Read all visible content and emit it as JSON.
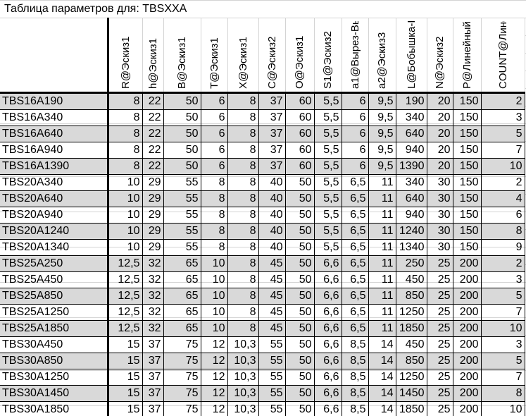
{
  "title": "Таблица параметров для: TBSXXA",
  "columns": [
    "R@Эскиз1",
    "h@Эскиз1",
    "B@Эскиз1",
    "T@Эскиз1",
    "X@Эскиз1",
    "C@Эскиз2",
    "O@Эскиз1",
    "S1@Эскиз2",
    "a1@Вырез-Вы",
    "a2@Эскиз3",
    "L@Бобышка-В",
    "N@Эскиз2",
    "P@Линейный",
    "COUNT@Лине"
  ],
  "rows": [
    {
      "name": "TBS16A190",
      "values": [
        "8",
        "22",
        "50",
        "6",
        "8",
        "37",
        "60",
        "5,5",
        "6",
        "9,5",
        "190",
        "20",
        "150",
        "2"
      ]
    },
    {
      "name": "TBS16A340",
      "values": [
        "8",
        "22",
        "50",
        "6",
        "8",
        "37",
        "60",
        "5,5",
        "6",
        "9,5",
        "340",
        "20",
        "150",
        "3"
      ]
    },
    {
      "name": "TBS16A640",
      "values": [
        "8",
        "22",
        "50",
        "6",
        "8",
        "37",
        "60",
        "5,5",
        "6",
        "9,5",
        "640",
        "20",
        "150",
        "5"
      ]
    },
    {
      "name": "TBS16A940",
      "values": [
        "8",
        "22",
        "50",
        "6",
        "8",
        "37",
        "60",
        "5,5",
        "6",
        "9,5",
        "940",
        "20",
        "150",
        "7"
      ]
    },
    {
      "name": "TBS16A1390",
      "values": [
        "8",
        "22",
        "50",
        "6",
        "8",
        "37",
        "60",
        "5,5",
        "6",
        "9,5",
        "1390",
        "20",
        "150",
        "10"
      ]
    },
    {
      "name": "TBS20A340",
      "values": [
        "10",
        "29",
        "55",
        "8",
        "8",
        "40",
        "50",
        "5,5",
        "6,5",
        "11",
        "340",
        "30",
        "150",
        "2"
      ]
    },
    {
      "name": "TBS20A640",
      "values": [
        "10",
        "29",
        "55",
        "8",
        "8",
        "40",
        "50",
        "5,5",
        "6,5",
        "11",
        "640",
        "30",
        "150",
        "4"
      ]
    },
    {
      "name": "TBS20A940",
      "values": [
        "10",
        "29",
        "55",
        "8",
        "8",
        "40",
        "50",
        "5,5",
        "6,5",
        "11",
        "940",
        "30",
        "150",
        "6"
      ]
    },
    {
      "name": "TBS20A1240",
      "values": [
        "10",
        "29",
        "55",
        "8",
        "8",
        "40",
        "50",
        "5,5",
        "6,5",
        "11",
        "1240",
        "30",
        "150",
        "8"
      ]
    },
    {
      "name": "TBS20A1340",
      "values": [
        "10",
        "29",
        "55",
        "8",
        "8",
        "40",
        "50",
        "5,5",
        "6,5",
        "11",
        "1340",
        "30",
        "150",
        "9"
      ]
    },
    {
      "name": "TBS25A250",
      "values": [
        "12,5",
        "32",
        "65",
        "10",
        "8",
        "45",
        "50",
        "6,6",
        "6,5",
        "11",
        "250",
        "25",
        "200",
        "2"
      ]
    },
    {
      "name": "TBS25A450",
      "values": [
        "12,5",
        "32",
        "65",
        "10",
        "8",
        "45",
        "50",
        "6,6",
        "6,5",
        "11",
        "450",
        "25",
        "200",
        "3"
      ]
    },
    {
      "name": "TBS25A850",
      "values": [
        "12,5",
        "32",
        "65",
        "10",
        "8",
        "45",
        "50",
        "6,6",
        "6,5",
        "11",
        "850",
        "25",
        "200",
        "5"
      ]
    },
    {
      "name": "TBS25A1250",
      "values": [
        "12,5",
        "32",
        "65",
        "10",
        "8",
        "45",
        "50",
        "6,6",
        "6,5",
        "11",
        "1250",
        "25",
        "200",
        "7"
      ]
    },
    {
      "name": "TBS25A1850",
      "values": [
        "12,5",
        "32",
        "65",
        "10",
        "8",
        "45",
        "50",
        "6,6",
        "6,5",
        "11",
        "1850",
        "25",
        "200",
        "10"
      ]
    },
    {
      "name": "TBS30A450",
      "values": [
        "15",
        "37",
        "75",
        "12",
        "10,3",
        "55",
        "50",
        "6,6",
        "8,5",
        "14",
        "450",
        "25",
        "200",
        "3"
      ]
    },
    {
      "name": "TBS30A850",
      "values": [
        "15",
        "37",
        "75",
        "12",
        "10,3",
        "55",
        "50",
        "6,6",
        "8,5",
        "14",
        "850",
        "25",
        "200",
        "5"
      ]
    },
    {
      "name": "TBS30A1250",
      "values": [
        "15",
        "37",
        "75",
        "12",
        "10,3",
        "55",
        "50",
        "6,6",
        "8,5",
        "14",
        "1250",
        "25",
        "200",
        "7"
      ]
    },
    {
      "name": "TBS30A1450",
      "values": [
        "15",
        "37",
        "75",
        "12",
        "10,3",
        "55",
        "50",
        "6,6",
        "8,5",
        "14",
        "1450",
        "25",
        "200",
        "8"
      ]
    },
    {
      "name": "TBS30A1850",
      "values": [
        "15",
        "37",
        "75",
        "12",
        "10,3",
        "55",
        "50",
        "6,6",
        "8,5",
        "14",
        "1850",
        "25",
        "200",
        "10"
      ]
    }
  ],
  "colors": {
    "stripe": "#d9d9d9",
    "border": "#000000",
    "grid": "#d4d4d4"
  }
}
